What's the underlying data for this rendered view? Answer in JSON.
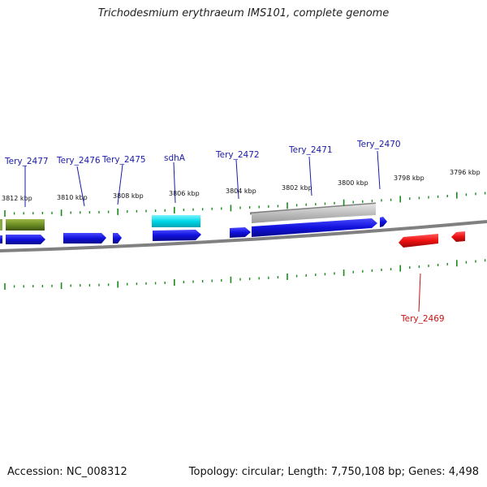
{
  "title": "Trichodesmium erythraeum IMS101, complete genome",
  "footer": {
    "accession_label": "Accession:",
    "accession": "NC_008312",
    "topology_label": "Topology:",
    "topology": "circular",
    "length_label": "Length:",
    "length": "7,750,108 bp",
    "genes_label": "Genes:",
    "genes": "4,498"
  },
  "colors": {
    "backbone": "#808080",
    "forward_gene": "#1010dd",
    "reverse_gene": "#ee1010",
    "rna": "#6b8e23",
    "sdha_feature": "#00d8e8",
    "misc_feature": "#b8b8b8",
    "tick": "#1a8a1a",
    "label_blue": "#1a1aa8",
    "label_red": "#cc1111"
  },
  "scale_labels": [
    "3812 kbp",
    "3810 kbp",
    "3808 kbp",
    "3806 kbp",
    "3804 kbp",
    "3802 kbp",
    "3800 kbp",
    "3798 kbp",
    "3796 kbp"
  ],
  "gene_labels": [
    {
      "name": "Tery_2477",
      "strand": "forward"
    },
    {
      "name": "Tery_2476",
      "strand": "forward"
    },
    {
      "name": "Tery_2475",
      "strand": "forward"
    },
    {
      "name": "sdhA",
      "strand": "forward"
    },
    {
      "name": "Tery_2472",
      "strand": "forward"
    },
    {
      "name": "Tery_2471",
      "strand": "forward"
    },
    {
      "name": "Tery_2470",
      "strand": "forward"
    },
    {
      "name": "Tery_2469",
      "strand": "reverse"
    }
  ]
}
